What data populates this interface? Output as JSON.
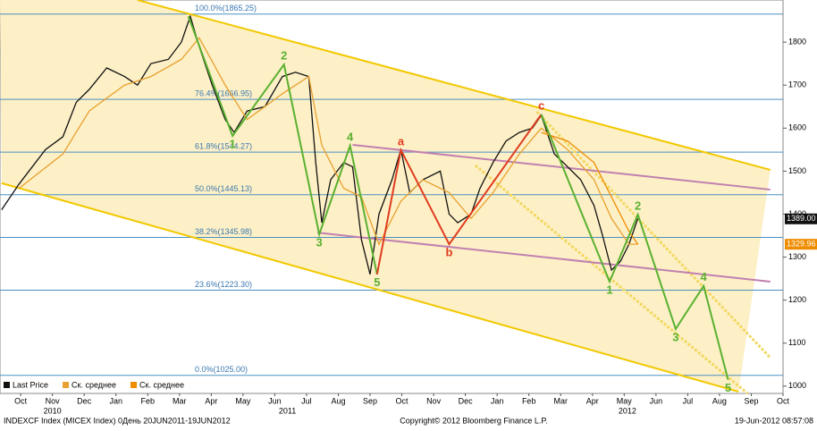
{
  "chart_data": {
    "type": "line",
    "xlim": [
      -0.65,
      24
    ],
    "ylim": [
      983,
      1898
    ],
    "xticks": [
      {
        "value": 0,
        "label": "Oct"
      },
      {
        "value": 1,
        "label": "Nov"
      },
      {
        "value": 2,
        "label": "Dec"
      },
      {
        "value": 3,
        "label": "Jan"
      },
      {
        "value": 4,
        "label": "Feb"
      },
      {
        "value": 5,
        "label": "Mar"
      },
      {
        "value": 6,
        "label": "Apr"
      },
      {
        "value": 7,
        "label": "May"
      },
      {
        "value": 8,
        "label": "Jun"
      },
      {
        "value": 9,
        "label": "Jul"
      },
      {
        "value": 10,
        "label": "Aug"
      },
      {
        "value": 11,
        "label": "Sep"
      },
      {
        "value": 12,
        "label": "Oct"
      },
      {
        "value": 13,
        "label": "Nov"
      },
      {
        "value": 14,
        "label": "Dec"
      },
      {
        "value": 15,
        "label": "Jan"
      },
      {
        "value": 16,
        "label": "Feb"
      },
      {
        "value": 17,
        "label": "Mar"
      },
      {
        "value": 18,
        "label": "Apr"
      },
      {
        "value": 19,
        "label": "May"
      },
      {
        "value": 20,
        "label": "Jun"
      },
      {
        "value": 21,
        "label": "Jul"
      },
      {
        "value": 22,
        "label": "Aug"
      },
      {
        "value": 23,
        "label": "Sep"
      },
      {
        "value": 24,
        "label": "Oct"
      }
    ],
    "year_labels": [
      {
        "value": 1,
        "label": "2010"
      },
      {
        "value": 8.4,
        "label": "2011"
      },
      {
        "value": 19.1,
        "label": "2012"
      }
    ],
    "yticks": [
      1000,
      1100,
      1200,
      1300,
      1400,
      1500,
      1600,
      1700,
      1800
    ],
    "series": [
      {
        "name": "Last Price",
        "color": "#111111",
        "x": [
          -0.6,
          -0.05,
          0.78,
          1.33,
          1.75,
          2.16,
          2.71,
          3.27,
          3.68,
          4.1,
          4.65,
          5.06,
          5.34,
          5.62,
          6.03,
          6.44,
          6.72,
          7.13,
          7.69,
          8.24,
          8.65,
          9.07,
          9.29,
          9.48,
          9.76,
          10.17,
          10.45,
          10.73,
          11.0,
          11.28,
          11.69,
          11.97,
          12.25,
          12.66,
          13.21,
          13.49,
          13.76,
          14.18,
          14.46,
          14.87,
          15.28,
          15.7,
          16.11,
          16.39,
          16.8,
          17.22,
          17.63,
          18.05,
          18.32,
          18.6,
          18.88,
          19.15,
          19.43
        ],
        "values": [
          1410,
          1470,
          1550,
          1580,
          1660,
          1690,
          1740,
          1720,
          1700,
          1750,
          1760,
          1800,
          1860,
          1790,
          1700,
          1620,
          1590,
          1640,
          1650,
          1720,
          1730,
          1720,
          1520,
          1380,
          1480,
          1520,
          1510,
          1340,
          1260,
          1400,
          1480,
          1550,
          1450,
          1480,
          1500,
          1400,
          1380,
          1400,
          1460,
          1520,
          1570,
          1590,
          1600,
          1630,
          1540,
          1510,
          1480,
          1420,
          1350,
          1270,
          1290,
          1330,
          1390
        ]
      },
      {
        "name": "Ск. среднее",
        "color": "#e8a030",
        "x": [
          -0.05,
          1.33,
          2.16,
          3.27,
          4.1,
          5.06,
          5.62,
          6.44,
          7.13,
          8.24,
          9.07,
          9.48,
          10.17,
          10.73,
          11.28,
          11.97,
          12.66,
          13.49,
          14.18,
          14.87,
          15.7,
          16.39,
          17.22,
          18.05,
          18.6,
          19.15,
          19.43
        ],
        "values": [
          1460,
          1540,
          1640,
          1700,
          1720,
          1760,
          1810,
          1700,
          1620,
          1680,
          1720,
          1560,
          1460,
          1440,
          1330,
          1430,
          1480,
          1450,
          1390,
          1450,
          1540,
          1600,
          1550,
          1480,
          1390,
          1330,
          1330
        ]
      },
      {
        "name": "Ск. среднее",
        "color": "#f08c00",
        "x": [
          16.39,
          17.22,
          18.05,
          18.6,
          19.15,
          19.43
        ],
        "values": [
          1590,
          1570,
          1520,
          1440,
          1360,
          1330
        ]
      }
    ],
    "price_tags": [
      {
        "value": 1389,
        "label": "1389.00",
        "color": "#111111"
      },
      {
        "value": 1329.96,
        "label": "1329.96",
        "color": "#f08c00"
      }
    ],
    "fib_levels": [
      {
        "value": 1865.25,
        "label": "100.0%(1865.25)"
      },
      {
        "value": 1666.95,
        "label": "76.4%(1666.95)"
      },
      {
        "value": 1544.27,
        "label": "61.8%(1544.27)"
      },
      {
        "value": 1445.13,
        "label": "50.0%(1445.13)"
      },
      {
        "value": 1345.98,
        "label": "38.2%(1345.98)"
      },
      {
        "value": 1223.3,
        "label": "23.6%(1223.30)"
      },
      {
        "value": 1025.0,
        "label": "0.0%(1025.00)"
      }
    ],
    "channel_lines": [
      {
        "x": [
          3.68,
          23.6
        ],
        "values": [
          1898,
          1503
        ],
        "color": "#f2c800",
        "dashed": false
      },
      {
        "x": [
          -0.6,
          22.6
        ],
        "values": [
          1472,
          987
        ],
        "color": "#f2c800",
        "dashed": false
      },
      {
        "x": [
          16.25,
          23.6
        ],
        "values": [
          1638,
          1066
        ],
        "color": "#f2d860",
        "dashed": true
      },
      {
        "x": [
          14.32,
          22.88
        ],
        "values": [
          1513,
          983
        ],
        "color": "#f2d860",
        "dashed": true
      },
      {
        "x": [
          9.34,
          23.6
        ],
        "values": [
          1357,
          1243
        ],
        "color": "#c080b0",
        "dashed": false
      },
      {
        "x": [
          10.45,
          23.6
        ],
        "values": [
          1561,
          1457
        ],
        "color": "#c080b0",
        "dashed": false
      }
    ],
    "waves": [
      {
        "color": "#5ab030",
        "x": [
          5.28,
          6.67,
          8.29,
          9.4,
          10.37,
          11.22
        ],
        "values": [
          1860,
          1582,
          1748,
          1353,
          1559,
          1260
        ],
        "labels": [
          null,
          "1",
          "2",
          "3",
          "4",
          "5"
        ]
      },
      {
        "color": "#e03c20",
        "x": [
          11.22,
          11.97,
          13.49,
          16.39
        ],
        "values": [
          1260,
          1549,
          1330,
          1632
        ],
        "labels": [
          null,
          "a",
          "b",
          "c"
        ]
      },
      {
        "color": "#5ab030",
        "x": [
          16.39,
          18.54,
          19.43,
          20.62,
          21.5,
          22.27
        ],
        "values": [
          1632,
          1243,
          1399,
          1133,
          1233,
          1015
        ],
        "labels": [
          null,
          "1",
          "2",
          "3",
          "4",
          "5"
        ]
      }
    ],
    "footer_left": "INDEXCF Index (MICEX Index) 0День 20JUN2011-19JUN2012",
    "footer_center": "Copyright© 2012 Bloomberg Finance L.P.",
    "footer_right": "19-Jun-2012 08:57:08"
  }
}
